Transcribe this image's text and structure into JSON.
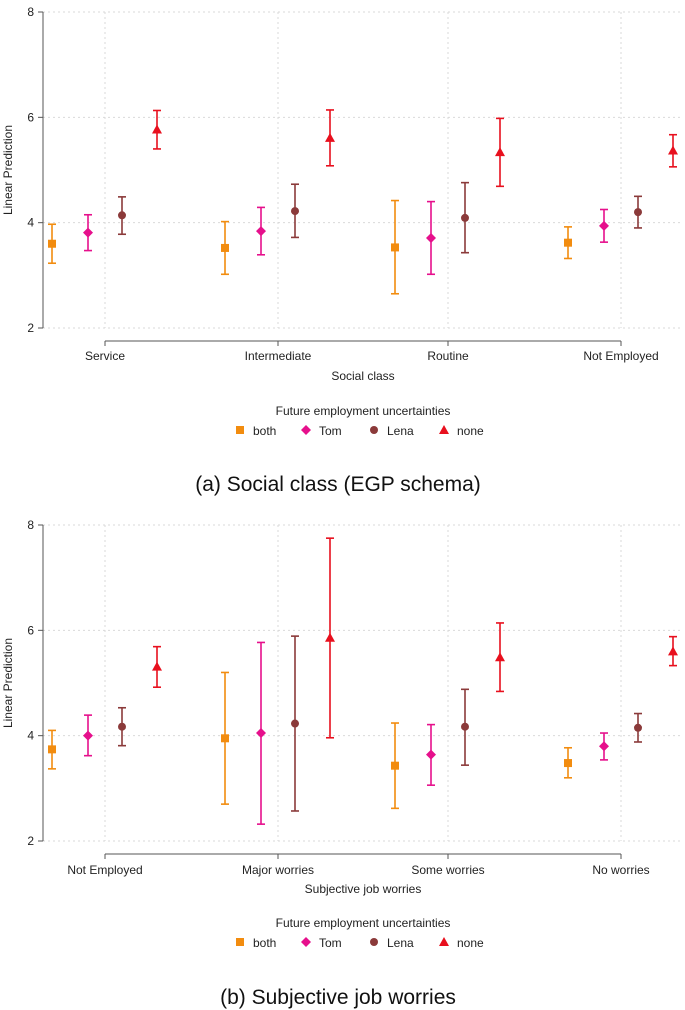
{
  "colors": {
    "both": "#F28C0F",
    "Tom": "#E6108C",
    "Lena": "#8B3A3A",
    "none": "#E8101E"
  },
  "legend": {
    "title": "Future employment uncertainties",
    "series": [
      "both",
      "Tom",
      "Lena",
      "none"
    ]
  },
  "captions": [
    "(a) Social class (EGP schema)",
    "(b) Subjective job worries"
  ],
  "chart_data": [
    {
      "type": "scatter",
      "subtype": "point-with-error-bars",
      "ylabel": "Linear Prediction",
      "xlabel": "Social class",
      "ylim": [
        2,
        8
      ],
      "yticks": [
        2,
        4,
        6,
        8
      ],
      "categories": [
        "Service",
        "Intermediate",
        "Routine",
        "Not Employed"
      ],
      "series": [
        {
          "name": "both",
          "marker": "square",
          "values": [
            3.6,
            3.52,
            3.53,
            3.62
          ],
          "lower": [
            3.23,
            3.02,
            2.65,
            3.32
          ],
          "upper": [
            3.97,
            4.02,
            4.42,
            3.92
          ]
        },
        {
          "name": "Tom",
          "marker": "diamond",
          "values": [
            3.81,
            3.84,
            3.71,
            3.94
          ],
          "lower": [
            3.47,
            3.39,
            3.02,
            3.63
          ],
          "upper": [
            4.15,
            4.29,
            4.4,
            4.25
          ]
        },
        {
          "name": "Lena",
          "marker": "circle",
          "values": [
            4.14,
            4.22,
            4.09,
            4.2
          ],
          "lower": [
            3.78,
            3.72,
            3.43,
            3.9
          ],
          "upper": [
            4.49,
            4.73,
            4.76,
            4.5
          ]
        },
        {
          "name": "none",
          "marker": "triangle",
          "values": [
            5.77,
            5.61,
            5.34,
            5.37
          ],
          "lower": [
            5.4,
            5.08,
            4.69,
            5.06
          ],
          "upper": [
            6.13,
            6.14,
            5.98,
            5.67
          ]
        }
      ]
    },
    {
      "type": "scatter",
      "subtype": "point-with-error-bars",
      "ylabel": "Linear Prediction",
      "xlabel": "Subjective job worries",
      "ylim": [
        2,
        8
      ],
      "yticks": [
        2,
        4,
        6,
        8
      ],
      "categories": [
        "Not Employed",
        "Major worries",
        "Some worries",
        "No worries"
      ],
      "series": [
        {
          "name": "both",
          "marker": "square",
          "values": [
            3.74,
            3.95,
            3.43,
            3.48
          ],
          "lower": [
            3.37,
            2.7,
            2.62,
            3.2
          ],
          "upper": [
            4.1,
            5.2,
            4.24,
            3.77
          ]
        },
        {
          "name": "Tom",
          "marker": "diamond",
          "values": [
            4.0,
            4.05,
            3.64,
            3.8
          ],
          "lower": [
            3.62,
            2.32,
            3.06,
            3.54
          ],
          "upper": [
            4.39,
            5.77,
            4.21,
            4.05
          ]
        },
        {
          "name": "Lena",
          "marker": "circle",
          "values": [
            4.17,
            4.23,
            4.17,
            4.15
          ],
          "lower": [
            3.81,
            2.57,
            3.44,
            3.88
          ],
          "upper": [
            4.53,
            5.89,
            4.88,
            4.42
          ]
        },
        {
          "name": "none",
          "marker": "triangle",
          "values": [
            5.31,
            5.86,
            5.49,
            5.6
          ],
          "lower": [
            4.92,
            3.96,
            4.84,
            5.33
          ],
          "upper": [
            5.69,
            7.75,
            6.14,
            5.88
          ]
        }
      ]
    }
  ]
}
